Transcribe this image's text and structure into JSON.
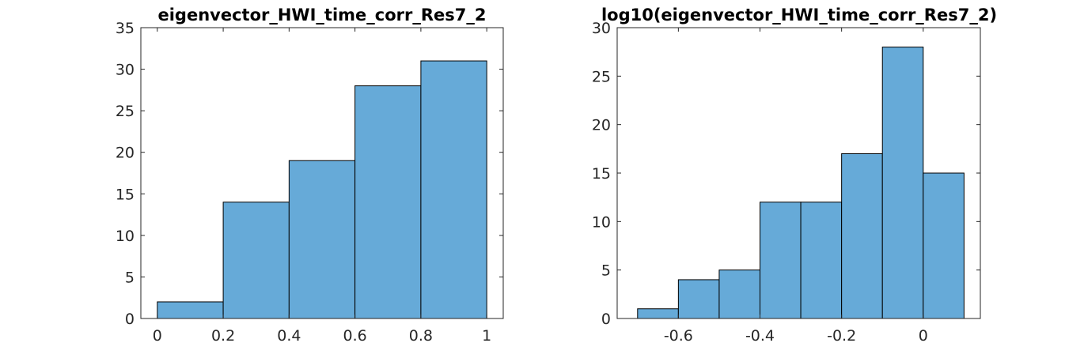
{
  "bar_color": "#66aad8",
  "chart_data": [
    {
      "type": "bar",
      "title": "eigenvector_HWI_time_corr_Res7_2",
      "xlabel": "",
      "ylabel": "",
      "bin_edges": [
        0,
        0.2,
        0.4,
        0.6,
        0.8,
        1.0
      ],
      "values": [
        2,
        14,
        19,
        28,
        31
      ],
      "xlim": [
        -0.05,
        1.05
      ],
      "ylim": [
        0,
        35
      ],
      "xticks": [
        0,
        0.2,
        0.4,
        0.6,
        0.8,
        1
      ],
      "xtick_labels": [
        "0",
        "0.2",
        "0.4",
        "0.6",
        "0.8",
        "1"
      ],
      "yticks": [
        0,
        5,
        10,
        15,
        20,
        25,
        30,
        35
      ],
      "ytick_labels": [
        "0",
        "5",
        "10",
        "15",
        "20",
        "25",
        "30",
        "35"
      ]
    },
    {
      "type": "bar",
      "title": "log10(eigenvector_HWI_time_corr_Res7_2)",
      "xlabel": "",
      "ylabel": "",
      "bin_edges": [
        -0.7,
        -0.6,
        -0.5,
        -0.4,
        -0.3,
        -0.2,
        -0.1,
        0,
        0.1
      ],
      "values": [
        1,
        4,
        5,
        12,
        12,
        17,
        28,
        15
      ],
      "xlim": [
        -0.75,
        0.14
      ],
      "ylim": [
        0,
        30
      ],
      "xticks": [
        -0.6,
        -0.4,
        -0.2,
        0
      ],
      "xtick_labels": [
        "-0.6",
        "-0.4",
        "-0.2",
        "0"
      ],
      "yticks": [
        0,
        5,
        10,
        15,
        20,
        25,
        30
      ],
      "ytick_labels": [
        "0",
        "5",
        "10",
        "15",
        "20",
        "25",
        "30"
      ]
    }
  ]
}
